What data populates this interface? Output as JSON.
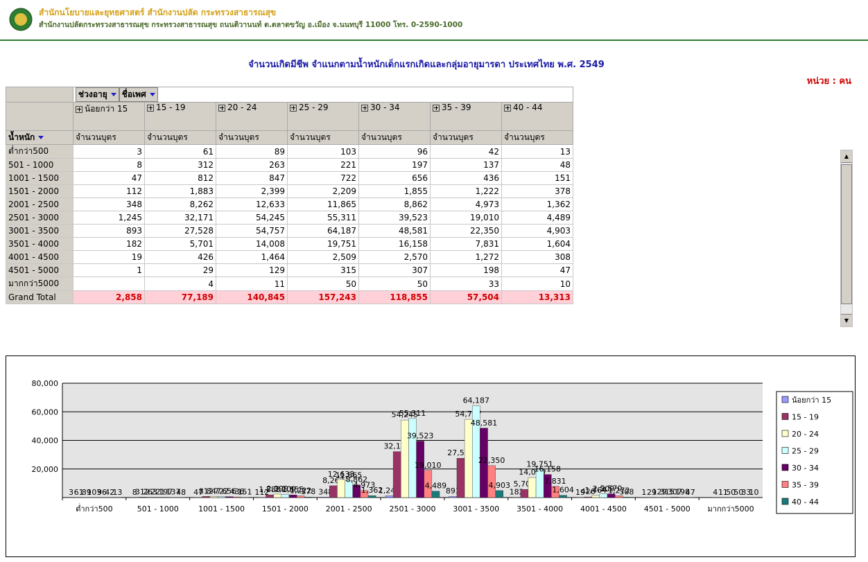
{
  "header": {
    "org_name": "สำนักนโยบายและยุทธศาสตร์ สำนักงานปลัด กระทรวงสาธารณสุข",
    "address": "สำนักงานปลัดกระทรวงสาธารณสุข กระทรวงสาธารณสุข ถนนติวานนท์ ต.ตลาดขวัญ อ.เมือง จ.นนทบุรี 11000 โทร. 0-2590-1000"
  },
  "report": {
    "title": "จำนวนเกิดมีชีพ  จำแนกตามน้ำหนักเด็กแรกเกิดและกลุ่มอายุมารดา ประเทศไทย พ.ศ. 2549",
    "unit": "หน่วย : คน"
  },
  "table": {
    "column_fields": [
      "ช่วงอายุ",
      "ชื่อเพศ"
    ],
    "row_field": "น้ำหนัก",
    "columns": [
      "น้อยกว่า 15",
      "15 - 19",
      "20 - 24",
      "25 - 29",
      "30 - 34",
      "35 - 39",
      "40 - 44"
    ],
    "measure": "จำนวนบุตร",
    "rows": [
      {
        "label": "ต่ำกว่า500",
        "values": [
          "3",
          "61",
          "89",
          "103",
          "96",
          "42",
          "13"
        ]
      },
      {
        "label": "501 - 1000",
        "values": [
          "8",
          "312",
          "263",
          "221",
          "197",
          "137",
          "48"
        ]
      },
      {
        "label": "1001 - 1500",
        "values": [
          "47",
          "812",
          "847",
          "722",
          "656",
          "436",
          "151"
        ]
      },
      {
        "label": "1501 - 2000",
        "values": [
          "112",
          "1,883",
          "2,399",
          "2,209",
          "1,855",
          "1,222",
          "378"
        ]
      },
      {
        "label": "2001 - 2500",
        "values": [
          "348",
          "8,262",
          "12,633",
          "11,865",
          "8,862",
          "4,973",
          "1,362"
        ]
      },
      {
        "label": "2501 - 3000",
        "values": [
          "1,245",
          "32,171",
          "54,245",
          "55,311",
          "39,523",
          "19,010",
          "4,489"
        ]
      },
      {
        "label": "3001 - 3500",
        "values": [
          "893",
          "27,528",
          "54,757",
          "64,187",
          "48,581",
          "22,350",
          "4,903"
        ]
      },
      {
        "label": "3501 - 4000",
        "values": [
          "182",
          "5,701",
          "14,008",
          "19,751",
          "16,158",
          "7,831",
          "1,604"
        ]
      },
      {
        "label": "4001 - 4500",
        "values": [
          "19",
          "426",
          "1,464",
          "2,509",
          "2,570",
          "1,272",
          "308"
        ]
      },
      {
        "label": "4501 - 5000",
        "values": [
          "1",
          "29",
          "129",
          "315",
          "307",
          "198",
          "47"
        ]
      },
      {
        "label": "มากกว่า5000",
        "values": [
          null,
          "4",
          "11",
          "50",
          "50",
          "33",
          "10"
        ]
      }
    ],
    "grand_total": {
      "label": "Grand Total",
      "values": [
        "2,858",
        "77,189",
        "140,845",
        "157,243",
        "118,855",
        "57,504",
        "13,313"
      ]
    }
  },
  "chart_data": {
    "type": "bar",
    "categories": [
      "ต่ำกว่า500",
      "501 - 1000",
      "1001 - 1500",
      "1501 - 2000",
      "2001 - 2500",
      "2501 - 3000",
      "3001 - 3500",
      "3501 - 4000",
      "4001 - 4500",
      "4501 - 5000",
      "มากกว่า5000"
    ],
    "ylim": [
      0,
      80000
    ],
    "yticks": [
      {
        "value": 20000,
        "label": "20,000"
      },
      {
        "value": 40000,
        "label": "40,000"
      },
      {
        "value": 60000,
        "label": "60,000"
      },
      {
        "value": 80000,
        "label": "80,000"
      }
    ],
    "grid": true,
    "legend": "right",
    "series": [
      {
        "name": "น้อยกว่า 15",
        "color": "#9999ff",
        "values": [
          3,
          8,
          47,
          112,
          348,
          1245,
          893,
          182,
          19,
          1,
          null
        ],
        "value_labels": [
          "3",
          "8",
          "47",
          "112",
          "348",
          "1,245",
          "893",
          "182",
          "19",
          "1",
          null
        ]
      },
      {
        "name": "15 - 19",
        "color": "#993366",
        "values": [
          61,
          312,
          812,
          1883,
          8262,
          32171,
          27528,
          5701,
          426,
          29,
          4
        ],
        "value_labels": [
          "61",
          "312",
          "812",
          "1,883",
          "8,262",
          "32,171",
          "27,528",
          "5,701",
          "426",
          "29",
          "4"
        ]
      },
      {
        "name": "20 - 24",
        "color": "#ffffcc",
        "values": [
          89,
          263,
          847,
          2399,
          12633,
          54245,
          54757,
          14008,
          1464,
          129,
          11
        ],
        "value_labels": [
          "89",
          "263",
          "847",
          "2,399",
          "12,633",
          "54,245",
          "54,757",
          "14,008",
          "1,464",
          "129",
          "11"
        ]
      },
      {
        "name": "25 - 29",
        "color": "#ccffff",
        "values": [
          103,
          221,
          722,
          2209,
          11865,
          55311,
          64187,
          19751,
          2509,
          315,
          50
        ],
        "value_labels": [
          "103",
          "221",
          "722",
          "2,209",
          "11,865",
          "55,311",
          "64,187",
          "19,751",
          "2,509",
          "315",
          "50"
        ]
      },
      {
        "name": "30 - 34",
        "color": "#660066",
        "values": [
          96,
          197,
          656,
          1855,
          8862,
          39523,
          48581,
          16158,
          2570,
          307,
          50
        ],
        "value_labels": [
          "96",
          "197",
          "656",
          "1,855",
          "8,862",
          "39,523",
          "48,581",
          "16,158",
          "2,570",
          "307",
          "50"
        ]
      },
      {
        "name": "35 - 39",
        "color": "#ff8080",
        "values": [
          42,
          137,
          436,
          1222,
          4973,
          19010,
          22350,
          7831,
          1272,
          198,
          33
        ],
        "value_labels": [
          "42",
          "137",
          "436",
          "1,222",
          "4,973",
          "19,010",
          "22,350",
          "7,831",
          "1,272",
          "198",
          "33"
        ]
      },
      {
        "name": "40 - 44",
        "color": "#1a7a7a",
        "values": [
          13,
          48,
          151,
          378,
          1362,
          4489,
          4903,
          1604,
          308,
          47,
          10
        ],
        "value_labels": [
          "13",
          "48",
          "151",
          "378",
          "1,362",
          "4,489",
          "4,903",
          "1,604",
          "308",
          "47",
          "10"
        ]
      }
    ]
  }
}
